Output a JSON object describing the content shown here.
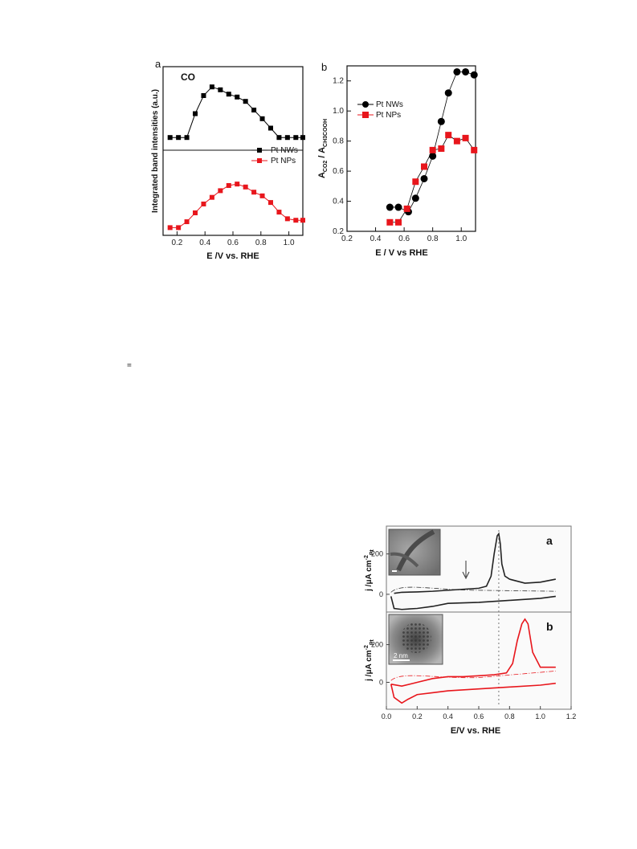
{
  "figure1": {
    "panel_a": {
      "panel_label": "a",
      "annotation": "CO",
      "ylabel": "Integrated band intensities (a.u.)",
      "xlabel": "E /V vs. RHE",
      "legend": [
        "Pt NWs",
        "Pt NPs"
      ]
    },
    "panel_b": {
      "panel_label": "b",
      "ylabel_main": "A",
      "ylabel_sub1": "CO2",
      "ylabel_mid": " / A",
      "ylabel_sub2": "CH3COOH",
      "xlabel": "E / V vs RHE",
      "legend": [
        "Pt NWs",
        "Pt NPs"
      ]
    }
  },
  "figure2": {
    "panel_a_label": "a",
    "panel_b_label": "b",
    "ylabel_main": "j /μA cm",
    "ylabel_sup": "-2",
    "ylabel_sub": "Pt",
    "xlabel": "E/V vs. RHE",
    "scalebar_label": "2 nm"
  },
  "stray_mark": "=",
  "chart_data": [
    {
      "type": "line",
      "title": "",
      "xlabel": "E /V vs. RHE",
      "ylabel": "Integrated band intensities (a.u.)",
      "xlim": [
        0.1,
        1.1
      ],
      "xticks": [
        0.2,
        0.4,
        0.6,
        0.8,
        1.0
      ],
      "xtick_labels": [
        "0.2",
        "0.4",
        "0.6",
        "0.8",
        "1.0"
      ],
      "upper_ylim": [
        0,
        1
      ],
      "lower_ylim": [
        0,
        1
      ],
      "series": [
        {
          "name": "Pt NWs",
          "color": "#000000",
          "marker": "square",
          "x": [
            0.15,
            0.21,
            0.27,
            0.33,
            0.39,
            0.45,
            0.51,
            0.57,
            0.63,
            0.69,
            0.75,
            0.81,
            0.87,
            0.93,
            0.99,
            1.05,
            1.1
          ],
          "y": [
            0.12,
            0.12,
            0.12,
            0.45,
            0.7,
            0.82,
            0.78,
            0.72,
            0.68,
            0.62,
            0.5,
            0.38,
            0.25,
            0.12,
            0.12,
            0.12,
            0.12
          ]
        },
        {
          "name": "Pt NPs",
          "color": "#e8161c",
          "marker": "square",
          "x": [
            0.15,
            0.21,
            0.27,
            0.33,
            0.39,
            0.45,
            0.51,
            0.57,
            0.63,
            0.69,
            0.75,
            0.81,
            0.87,
            0.93,
            0.99,
            1.05,
            1.1
          ],
          "y": [
            0.05,
            0.05,
            0.13,
            0.25,
            0.37,
            0.46,
            0.55,
            0.62,
            0.64,
            0.6,
            0.53,
            0.48,
            0.39,
            0.26,
            0.17,
            0.15,
            0.15
          ]
        }
      ]
    },
    {
      "type": "scatter",
      "title": "",
      "xlabel": "E / V vs RHE",
      "ylabel": "ACO2 / ACH3COOH",
      "xlim": [
        0.2,
        1.1
      ],
      "ylim": [
        0.2,
        1.3
      ],
      "xticks": [
        0.2,
        0.4,
        0.6,
        0.8,
        1.0
      ],
      "xtick_labels": [
        "0.2",
        "0.4",
        "0.6",
        "0.8",
        "1.0"
      ],
      "yticks": [
        0.2,
        0.4,
        0.6,
        0.8,
        1.0,
        1.2
      ],
      "ytick_labels": [
        "0.2",
        "0.4",
        "0.6",
        "0.8",
        "1.0",
        "1.2"
      ],
      "series": [
        {
          "name": "Pt NWs",
          "color": "#000000",
          "marker": "circle",
          "x": [
            0.5,
            0.56,
            0.63,
            0.68,
            0.74,
            0.8,
            0.86,
            0.91,
            0.97,
            1.03,
            1.09
          ],
          "y": [
            0.36,
            0.36,
            0.33,
            0.42,
            0.55,
            0.7,
            0.93,
            1.12,
            1.26,
            1.26,
            1.24
          ]
        },
        {
          "name": "Pt NPs",
          "color": "#e8161c",
          "marker": "square",
          "x": [
            0.5,
            0.56,
            0.62,
            0.68,
            0.74,
            0.8,
            0.86,
            0.91,
            0.97,
            1.03,
            1.09
          ],
          "y": [
            0.26,
            0.26,
            0.35,
            0.53,
            0.63,
            0.74,
            0.75,
            0.84,
            0.8,
            0.82,
            0.74
          ]
        }
      ]
    },
    {
      "type": "line",
      "title": "",
      "xlabel": "E/V vs. RHE",
      "ylabel": "j /μA cm-2Pt",
      "xlim": [
        0.0,
        1.2
      ],
      "xticks": [
        0.0,
        0.2,
        0.4,
        0.6,
        0.8,
        1.0,
        1.2
      ],
      "xtick_labels": [
        "0.0",
        "0.2",
        "0.4",
        "0.6",
        "0.8",
        "1.0",
        "1.2"
      ],
      "yticks_top": [
        0,
        200
      ],
      "yticks_bottom": [
        0,
        200
      ],
      "ylim_top": [
        -80,
        330
      ],
      "ylim_bottom": [
        -130,
        360
      ],
      "guide_x": 0.73,
      "series": [
        {
          "name": "NWs (panel a) anodic",
          "color": "#222222",
          "x": [
            0.05,
            0.1,
            0.2,
            0.3,
            0.4,
            0.5,
            0.6,
            0.65,
            0.68,
            0.7,
            0.72,
            0.73,
            0.74,
            0.75,
            0.77,
            0.8,
            0.85,
            0.9,
            1.0,
            1.1
          ],
          "y": [
            5,
            10,
            12,
            15,
            20,
            25,
            30,
            40,
            90,
            200,
            290,
            300,
            250,
            150,
            90,
            75,
            65,
            55,
            60,
            75
          ]
        },
        {
          "name": "NWs (panel a) cathodic",
          "color": "#222222",
          "x": [
            1.1,
            1.0,
            0.8,
            0.6,
            0.4,
            0.3,
            0.2,
            0.1,
            0.05,
            0.03
          ],
          "y": [
            -10,
            -20,
            -30,
            -40,
            -45,
            -60,
            -70,
            -75,
            -70,
            -10
          ]
        },
        {
          "name": "NPs (panel b) anodic",
          "color": "#e8161c",
          "x": [
            0.03,
            0.1,
            0.2,
            0.3,
            0.4,
            0.5,
            0.6,
            0.7,
            0.78,
            0.82,
            0.85,
            0.88,
            0.9,
            0.92,
            0.95,
            1.0,
            1.1
          ],
          "y": [
            -10,
            -20,
            0,
            20,
            30,
            30,
            35,
            40,
            50,
            100,
            220,
            310,
            335,
            310,
            160,
            80,
            80
          ]
        },
        {
          "name": "NPs (panel b) cathodic",
          "color": "#e8161c",
          "x": [
            1.1,
            1.0,
            0.8,
            0.6,
            0.4,
            0.3,
            0.2,
            0.14,
            0.1,
            0.05,
            0.03
          ],
          "y": [
            -5,
            -15,
            -25,
            -35,
            -45,
            -55,
            -65,
            -90,
            -110,
            -80,
            -10
          ]
        }
      ]
    }
  ]
}
